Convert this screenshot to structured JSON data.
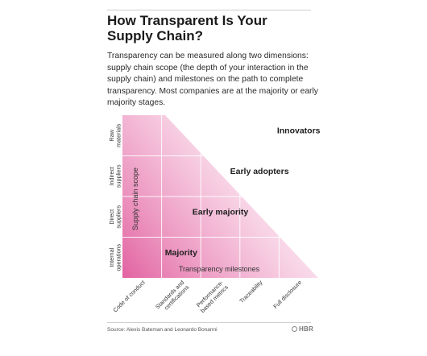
{
  "title": "How Transparent Is Your Supply Chain?",
  "subtitle": "Transparency can be measured along two dimensions: supply chain scope (the depth of your interaction in the supply chain) and milestones on the path to complete transparency. Most companies are at the majority or early majority stages.",
  "source": "Source: Alexis Bateman and Leonardo Bonanni",
  "logo": "HBR",
  "colors": {
    "accent": "#e05a9c",
    "gridline": "#ffffff",
    "text": "#222222"
  },
  "chart_data": {
    "type": "heatmap",
    "xlabel": "Transparency milestones",
    "ylabel": "Supply chain scope",
    "x_categories": [
      "Code of conduct",
      "Standards and certifications",
      "Performance-based metrics",
      "Traceability",
      "Full disclosure"
    ],
    "y_categories": [
      "Internal operations",
      "Direct suppliers",
      "Indirect suppliers",
      "Raw materials"
    ],
    "stages": [
      {
        "label": "Majority",
        "x_index": 1,
        "y_index": 0
      },
      {
        "label": "Early majority",
        "x_index": 2,
        "y_index": 1
      },
      {
        "label": "Early adopters",
        "x_index": 3,
        "y_index": 2
      },
      {
        "label": "Innovators",
        "x_index": 4,
        "y_index": 3
      }
    ],
    "grid": true
  }
}
